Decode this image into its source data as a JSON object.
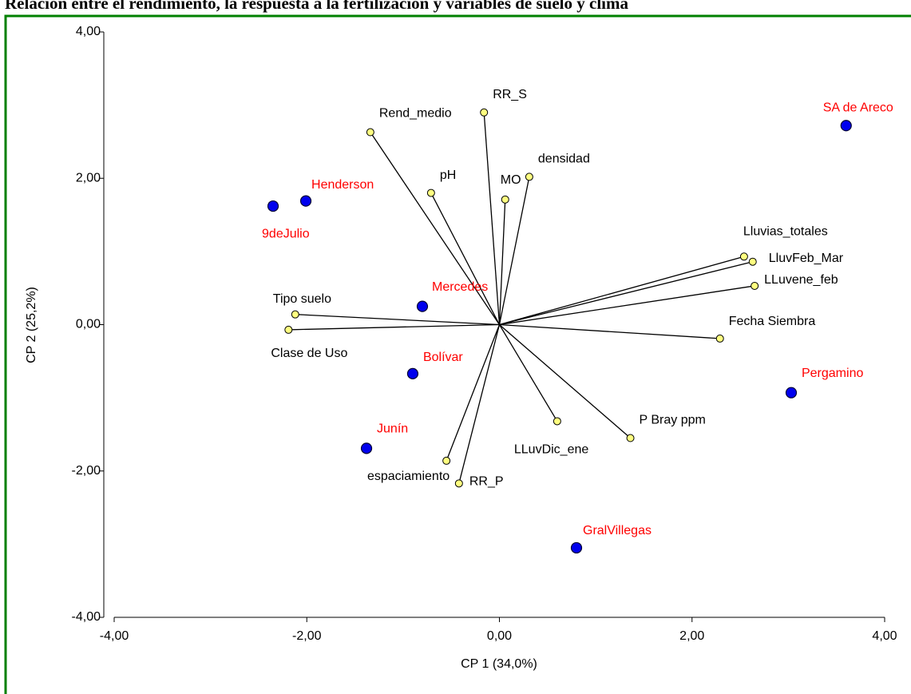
{
  "chart_data": {
    "type": "biplot",
    "title": "Relación entre el rendimiento, la respuesta a la fertilización y variables de suelo y clima",
    "x_label": "CP 1 (34,0%)",
    "y_label": "CP 2 (25,2%)",
    "xlim": [
      -4,
      4
    ],
    "ylim": [
      -4,
      4
    ],
    "xticks": [
      {
        "value": -4,
        "label": "-4,00"
      },
      {
        "value": -2,
        "label": "-2,00"
      },
      {
        "value": 0,
        "label": "0,00"
      },
      {
        "value": 2,
        "label": "2,00"
      },
      {
        "value": 4,
        "label": "4,00"
      }
    ],
    "yticks": [
      {
        "value": -4,
        "label": "-4,00"
      },
      {
        "value": -2,
        "label": "-2,00"
      },
      {
        "value": 0,
        "label": "0,00"
      },
      {
        "value": 2,
        "label": "2,00"
      },
      {
        "value": 4,
        "label": "4,00"
      }
    ],
    "observations": {
      "color": "#0000ee",
      "label_color": "#ff0000",
      "labels": [
        "SA de Areco",
        "Henderson",
        "9deJulio",
        "Mercedes",
        "Bolívar",
        "Pergamino",
        "Junín",
        "GralVillegas"
      ],
      "x": [
        3.6,
        -2.01,
        -2.35,
        -0.8,
        -0.9,
        3.03,
        -1.38,
        0.8
      ],
      "y": [
        2.72,
        1.69,
        1.62,
        0.25,
        -0.67,
        -0.93,
        -1.69,
        -3.05
      ]
    },
    "variables": {
      "color": "#ffff80",
      "labels": [
        "RR_S",
        "Rend_medio",
        "pH",
        "MO",
        "densidad",
        "Lluvias_totales",
        "LluvFeb_Mar",
        "LLuvene_feb",
        "Fecha Siembra",
        "Tipo suelo",
        "Clase de Uso",
        "LLuvDic_ene",
        "P Bray ppm",
        "espaciamiento",
        "RR_P"
      ],
      "x": [
        -0.16,
        -1.34,
        -0.71,
        0.06,
        0.31,
        2.54,
        2.63,
        2.65,
        2.29,
        -2.12,
        -2.19,
        0.6,
        1.36,
        -0.55,
        -0.42
      ],
      "y": [
        2.9,
        2.63,
        1.8,
        1.71,
        2.02,
        0.93,
        0.86,
        0.53,
        -0.19,
        0.14,
        -0.07,
        -1.32,
        -1.55,
        -1.86,
        -2.17
      ]
    }
  }
}
